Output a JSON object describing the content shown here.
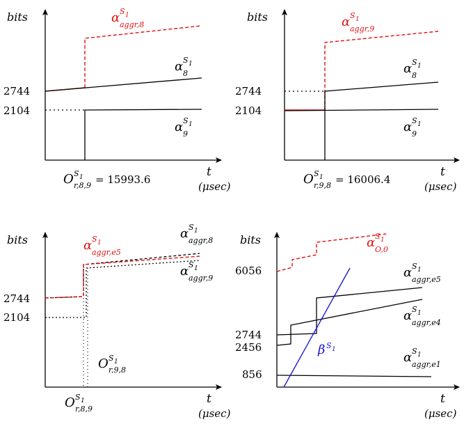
{
  "panels": [
    {
      "y_axis_label": "bits",
      "x_axis_label": "t",
      "x_unit": "(μsec)",
      "y_ticks": [
        "2744",
        "2104"
      ],
      "offset_label": {
        "base": "O",
        "sup": "S",
        "supsub": "1",
        "sub": "r,8,9",
        "value": " = 15993.6"
      },
      "curves": [
        {
          "base": "α",
          "sup": "S",
          "supsub": "1",
          "sub": "aggr,8",
          "color": "#e01010"
        },
        {
          "base": "α",
          "sup": "S",
          "supsub": "1",
          "sub": "8",
          "color": "#000000"
        },
        {
          "base": "α",
          "sup": "S",
          "supsub": "1",
          "sub": "9",
          "color": "#000000"
        }
      ]
    },
    {
      "y_axis_label": "bits",
      "x_axis_label": "t",
      "x_unit": "(μsec)",
      "y_ticks": [
        "2744",
        "2104"
      ],
      "offset_label": {
        "base": "O",
        "sup": "S",
        "supsub": "1",
        "sub": "r,9,8",
        "value": " = 16006.4"
      },
      "curves": [
        {
          "base": "α",
          "sup": "S",
          "supsub": "1",
          "sub": "aggr,9",
          "color": "#e01010"
        },
        {
          "base": "α",
          "sup": "S",
          "supsub": "1",
          "sub": "8",
          "color": "#000000"
        },
        {
          "base": "α",
          "sup": "S",
          "supsub": "1",
          "sub": "9",
          "color": "#000000"
        }
      ]
    },
    {
      "y_axis_label": "bits",
      "x_axis_label": "t",
      "x_unit": "(μsec)",
      "y_ticks": [
        "2744",
        "2104"
      ],
      "offset_labels": [
        {
          "base": "O",
          "sup": "S",
          "supsub": "1",
          "sub": "r,9,8"
        },
        {
          "base": "O",
          "sup": "S",
          "supsub": "1",
          "sub": "r,8,9"
        }
      ],
      "curves": [
        {
          "base": "α",
          "sup": "S",
          "supsub": "1",
          "sub": "aggr,e5",
          "color": "#e01010"
        },
        {
          "base": "α",
          "sup": "S",
          "supsub": "1",
          "sub": "aggr,8",
          "color": "#000000"
        },
        {
          "base": "α",
          "sup": "S",
          "supsub": "1",
          "sub": "aggr,9",
          "color": "#000000"
        }
      ]
    },
    {
      "y_axis_label": "bits",
      "x_axis_label": "t",
      "x_unit": "(μsec)",
      "y_ticks": [
        "6056",
        "2744",
        "2456",
        "856"
      ],
      "curves": [
        {
          "base": "α",
          "sup": "S",
          "supsub": "1",
          "sub": "O,0",
          "color": "#e01010"
        },
        {
          "base": "α",
          "sup": "S",
          "supsub": "1",
          "sub": "aggr,e5",
          "color": "#000000"
        },
        {
          "base": "α",
          "sup": "S",
          "supsub": "1",
          "sub": "aggr,e4",
          "color": "#000000"
        },
        {
          "base": "β",
          "sup": "S",
          "supsub": "1",
          "sub": "",
          "color": "#1010d0"
        },
        {
          "base": "α",
          "sup": "S",
          "supsub": "1",
          "sub": "aggr,e1",
          "color": "#000000"
        }
      ]
    }
  ]
}
